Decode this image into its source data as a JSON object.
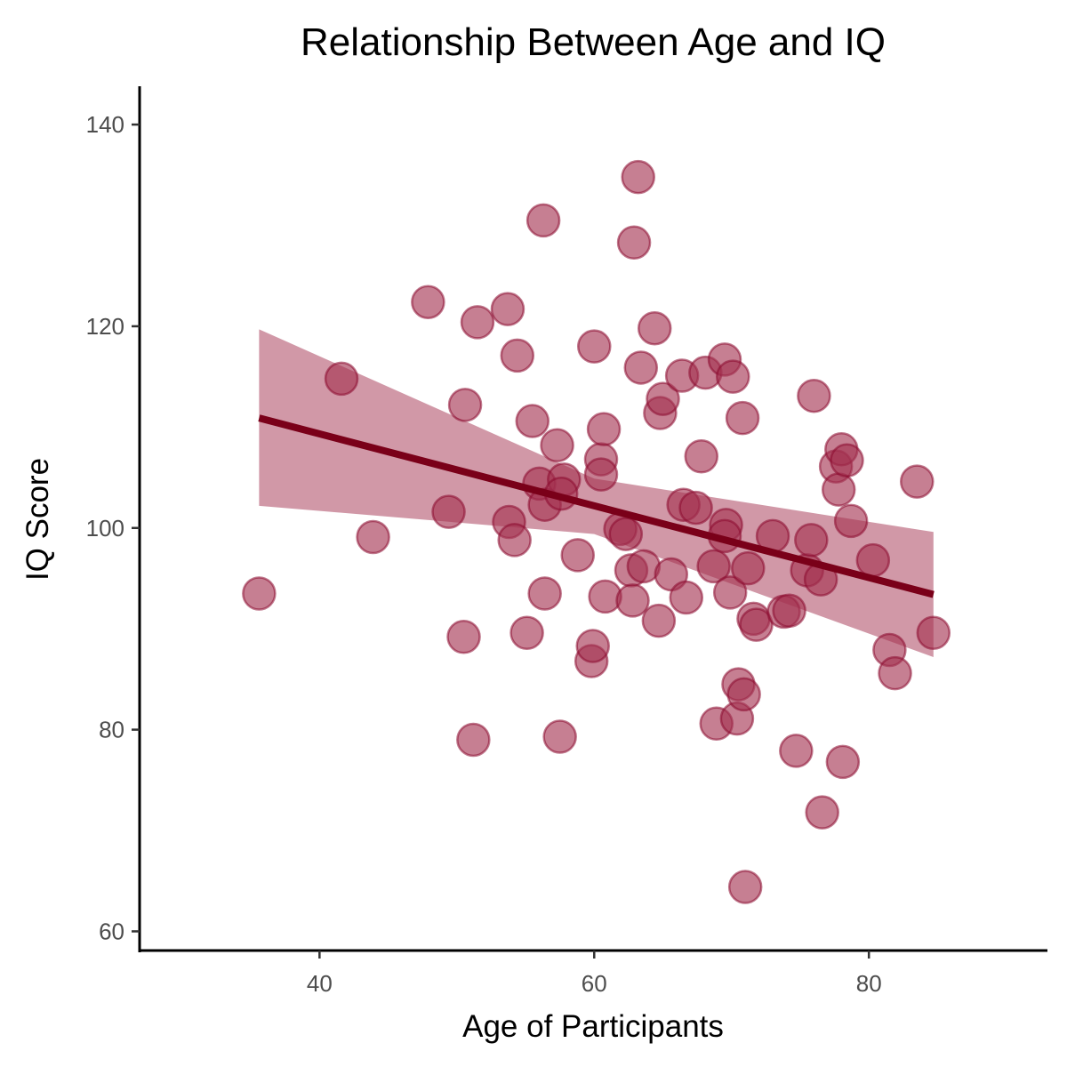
{
  "chart_data": {
    "type": "scatter",
    "title": "Relationship Between Age and IQ",
    "xlabel": "Age of Participants",
    "ylabel": "IQ Score",
    "xlim": [
      26.9,
      93.0
    ],
    "ylim": [
      58.1,
      143.8
    ],
    "x_ticks": [
      40,
      60,
      80
    ],
    "y_ticks": [
      60,
      80,
      100,
      120,
      140
    ],
    "grid": false,
    "legend": "none",
    "colors": {
      "point_fill": "#a3314f",
      "point_stroke": "#8b0a2e",
      "fit_line": "#7a0019",
      "confidence_band": "#a3314f"
    },
    "series": [
      {
        "points": [
          [
            35.6,
            93.5
          ],
          [
            41.6,
            114.8
          ],
          [
            43.9,
            99.1
          ],
          [
            47.9,
            122.4
          ],
          [
            49.4,
            101.6
          ],
          [
            50.5,
            89.2
          ],
          [
            50.6,
            112.2
          ],
          [
            51.2,
            79.0
          ],
          [
            51.5,
            120.4
          ],
          [
            53.7,
            121.7
          ],
          [
            53.8,
            100.6
          ],
          [
            54.2,
            98.8
          ],
          [
            54.4,
            117.1
          ],
          [
            55.1,
            89.6
          ],
          [
            55.5,
            110.6
          ],
          [
            56.0,
            104.4
          ],
          [
            56.3,
            130.5
          ],
          [
            56.4,
            93.5
          ],
          [
            56.4,
            102.3
          ],
          [
            57.3,
            108.2
          ],
          [
            57.5,
            79.3
          ],
          [
            57.8,
            104.8
          ],
          [
            57.6,
            103.4
          ],
          [
            58.8,
            97.3
          ],
          [
            59.8,
            86.8
          ],
          [
            59.9,
            88.3
          ],
          [
            60.0,
            118.0
          ],
          [
            60.5,
            106.8
          ],
          [
            60.5,
            105.3
          ],
          [
            60.7,
            109.8
          ],
          [
            60.8,
            93.2
          ],
          [
            61.9,
            99.9
          ],
          [
            62.3,
            99.4
          ],
          [
            62.7,
            95.8
          ],
          [
            62.8,
            92.8
          ],
          [
            62.9,
            128.3
          ],
          [
            63.2,
            134.8
          ],
          [
            63.4,
            115.9
          ],
          [
            63.6,
            96.2
          ],
          [
            64.4,
            119.8
          ],
          [
            64.7,
            90.8
          ],
          [
            64.8,
            111.4
          ],
          [
            65.0,
            112.8
          ],
          [
            65.6,
            95.4
          ],
          [
            66.4,
            115.1
          ],
          [
            66.5,
            102.3
          ],
          [
            66.7,
            93.1
          ],
          [
            67.4,
            102.0
          ],
          [
            67.8,
            107.1
          ],
          [
            68.1,
            115.4
          ],
          [
            68.7,
            96.2
          ],
          [
            68.9,
            80.6
          ],
          [
            69.5,
            116.7
          ],
          [
            69.6,
            100.3
          ],
          [
            69.5,
            99.2
          ],
          [
            69.9,
            93.6
          ],
          [
            70.1,
            115.0
          ],
          [
            70.4,
            81.1
          ],
          [
            70.5,
            84.5
          ],
          [
            70.8,
            110.9
          ],
          [
            70.9,
            83.5
          ],
          [
            71.0,
            64.4
          ],
          [
            71.2,
            96.0
          ],
          [
            71.6,
            91.0
          ],
          [
            71.8,
            90.4
          ],
          [
            73.0,
            99.2
          ],
          [
            73.8,
            91.7
          ],
          [
            74.2,
            91.8
          ],
          [
            74.7,
            77.9
          ],
          [
            75.5,
            95.8
          ],
          [
            75.8,
            98.8
          ],
          [
            76.0,
            113.1
          ],
          [
            76.5,
            94.9
          ],
          [
            76.6,
            71.8
          ],
          [
            77.6,
            106.1
          ],
          [
            77.8,
            103.8
          ],
          [
            78.0,
            107.8
          ],
          [
            78.1,
            76.8
          ],
          [
            78.4,
            106.7
          ],
          [
            78.7,
            100.7
          ],
          [
            80.3,
            96.8
          ],
          [
            81.5,
            87.9
          ],
          [
            81.9,
            85.6
          ],
          [
            83.5,
            104.6
          ],
          [
            84.7,
            89.6
          ]
        ]
      }
    ],
    "fit_line": {
      "x": [
        35.6,
        84.7
      ],
      "y": [
        110.9,
        93.4
      ]
    },
    "confidence_band": {
      "x": [
        35.6,
        60.0,
        84.7
      ],
      "lower": [
        102.2,
        99.4,
        87.2
      ],
      "upper": [
        119.7,
        104.9,
        99.6
      ]
    }
  }
}
